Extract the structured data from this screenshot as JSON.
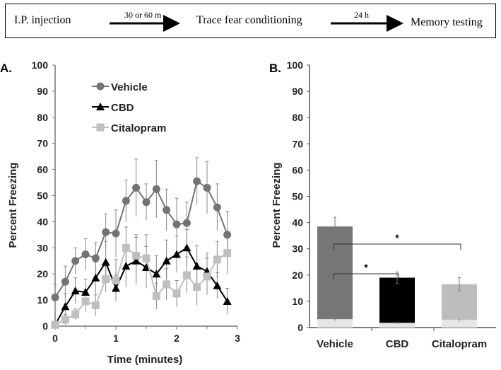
{
  "flow": {
    "step1": "I.P. injection",
    "arrow1": "30 or 60 m",
    "step2": "Trace fear conditioning",
    "arrow2": "24 h",
    "step3": "Memory testing"
  },
  "chart_data": [
    {
      "type": "line",
      "panel_label": "A.",
      "xlabel": "Time (minutes)",
      "ylabel": "Percent Freezing",
      "xlim": [
        0,
        3
      ],
      "ylim": [
        0,
        100
      ],
      "xticks": [
        "0",
        "1",
        "2",
        "3"
      ],
      "yticks": [
        "0",
        "10",
        "20",
        "30",
        "40",
        "50",
        "60",
        "70",
        "80",
        "90",
        "100"
      ],
      "legend_position": "top-left",
      "x": [
        0,
        0.167,
        0.333,
        0.5,
        0.667,
        0.833,
        1.0,
        1.167,
        1.333,
        1.5,
        1.667,
        1.833,
        2.0,
        2.167,
        2.333,
        2.5,
        2.667,
        2.833
      ],
      "series": [
        {
          "name": "Vehicle",
          "marker": "circle",
          "color": "#737373",
          "values": [
            11,
            17,
            25,
            27.5,
            26,
            36,
            35.5,
            48,
            53,
            47.5,
            52.5,
            44.5,
            39,
            39.5,
            55.5,
            53,
            45.5,
            35
          ],
          "errors": [
            5,
            6,
            5,
            6,
            6,
            7,
            9,
            8,
            11,
            7,
            11,
            8,
            10,
            8,
            9,
            10,
            9,
            9
          ]
        },
        {
          "name": "CBD",
          "marker": "triangle",
          "color": "#000000",
          "values": [
            0.5,
            7.5,
            13.5,
            13,
            18.5,
            24.5,
            14.5,
            23,
            25,
            22.5,
            20,
            25,
            27.5,
            30,
            23,
            21,
            15.5,
            9.5
          ],
          "errors": [
            1,
            5,
            5,
            5,
            6,
            8,
            5,
            8,
            9,
            8,
            7,
            8,
            7,
            7,
            8,
            7,
            5,
            5
          ]
        },
        {
          "name": "Citalopram",
          "marker": "square",
          "color": "#bfbfbf",
          "values": [
            0.5,
            2.5,
            4.5,
            9.5,
            8,
            18,
            17.5,
            30,
            27,
            26,
            11.5,
            16,
            12.5,
            19.5,
            15,
            19,
            25.5,
            28
          ],
          "errors": [
            1,
            2,
            2,
            4,
            4,
            5,
            8,
            8,
            8,
            9,
            5,
            6,
            5,
            7,
            7,
            7,
            7,
            8
          ]
        }
      ]
    },
    {
      "type": "bar",
      "panel_label": "B.",
      "ylabel": "Percent Freezing",
      "ylim": [
        0,
        100
      ],
      "yticks": [
        "0",
        "10",
        "20",
        "30",
        "40",
        "50",
        "60",
        "70",
        "80",
        "90",
        "100"
      ],
      "categories": [
        "Vehicle",
        "CBD",
        "Citalopram"
      ],
      "values": [
        38.5,
        19,
        16.5
      ],
      "errors": [
        3.5,
        2.2,
        2.5
      ],
      "baseline_values": [
        3.2,
        1.8,
        3
      ],
      "baseline_errors": [
        0.6,
        0.5,
        0.6
      ],
      "colors": [
        "#767676",
        "#000000",
        "#bdbdbd"
      ],
      "baseline_color": "#e6e6e6",
      "significance": [
        {
          "from": "Vehicle",
          "to": "CBD",
          "label": "*"
        },
        {
          "from": "Vehicle",
          "to": "Citalopram",
          "label": "*"
        }
      ]
    }
  ]
}
